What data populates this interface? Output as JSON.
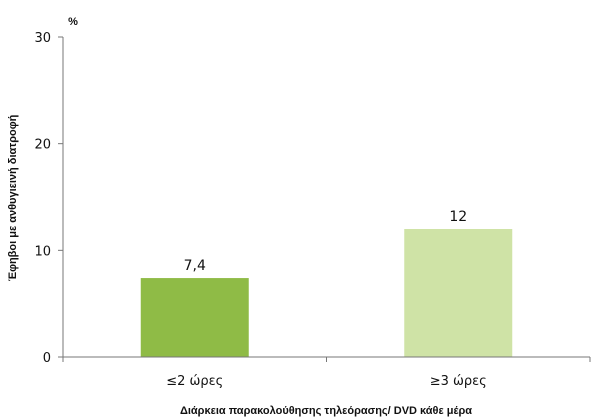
{
  "chart_data": {
    "type": "bar",
    "categories": [
      "≤2 ώρες",
      "≥3 ώρες"
    ],
    "values": [
      7.4,
      12
    ],
    "value_labels": [
      "7,4",
      "12"
    ],
    "colors": [
      "#8fbb46",
      "#cfe3a6"
    ],
    "xlabel": "Διάρκεια παρακολούθησης τηλεόρασης/ DVD κάθε μέρα",
    "ylabel": "Έφηβοι με ανθυγιεινή διατροφή",
    "y_unit": "%",
    "ylim": [
      0,
      30
    ],
    "yticks": [
      0,
      10,
      20,
      30
    ],
    "grid": false,
    "legend": "none"
  }
}
